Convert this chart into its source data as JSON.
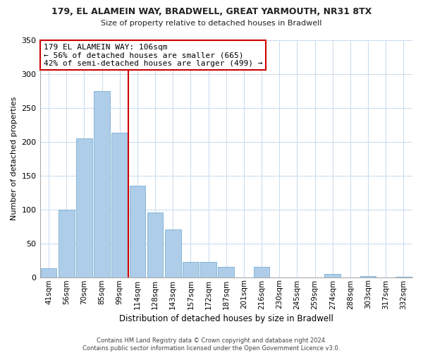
{
  "title_line1": "179, EL ALAMEIN WAY, BRADWELL, GREAT YARMOUTH, NR31 8TX",
  "title_line2": "Size of property relative to detached houses in Bradwell",
  "xlabel": "Distribution of detached houses by size in Bradwell",
  "ylabel": "Number of detached properties",
  "bin_labels": [
    "41sqm",
    "56sqm",
    "70sqm",
    "85sqm",
    "99sqm",
    "114sqm",
    "128sqm",
    "143sqm",
    "157sqm",
    "172sqm",
    "187sqm",
    "201sqm",
    "216sqm",
    "230sqm",
    "245sqm",
    "259sqm",
    "274sqm",
    "288sqm",
    "303sqm",
    "317sqm",
    "332sqm"
  ],
  "bar_heights": [
    13,
    100,
    205,
    275,
    213,
    135,
    95,
    70,
    23,
    23,
    15,
    0,
    15,
    0,
    0,
    0,
    5,
    0,
    2,
    0,
    1
  ],
  "bar_color": "#aecde8",
  "bar_edge_color": "#7aafd4",
  "vline_x": 4.5,
  "vline_color": "#cc0000",
  "ylim": [
    0,
    350
  ],
  "yticks": [
    0,
    50,
    100,
    150,
    200,
    250,
    300,
    350
  ],
  "annotation_title": "179 EL ALAMEIN WAY: 106sqm",
  "annotation_line1": "← 56% of detached houses are smaller (665)",
  "annotation_line2": "42% of semi-detached houses are larger (499) →",
  "annotation_box_color": "#ffffff",
  "annotation_box_edge": "#cc0000",
  "footer_line1": "Contains HM Land Registry data © Crown copyright and database right 2024.",
  "footer_line2": "Contains public sector information licensed under the Open Government Licence v3.0."
}
